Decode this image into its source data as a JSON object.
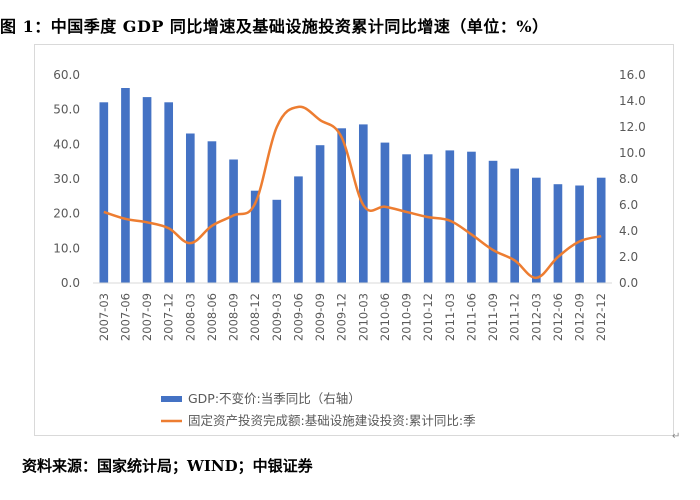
{
  "figure_title": "图 1：中国季度 GDP 同比增速及基础设施投资累计同比增速（单位：%）",
  "source_note": "资料来源：国家统计局；WIND；中银证券",
  "chart_data": {
    "type": "bar+line",
    "categories": [
      "2007-03",
      "2007-06",
      "2007-09",
      "2007-12",
      "2008-03",
      "2008-06",
      "2008-09",
      "2008-12",
      "2009-03",
      "2009-06",
      "2009-09",
      "2009-12",
      "2010-03",
      "2010-06",
      "2010-09",
      "2010-12",
      "2011-03",
      "2011-06",
      "2011-09",
      "2011-12",
      "2012-03",
      "2012-06",
      "2012-09",
      "2012-12"
    ],
    "series": [
      {
        "name": "GDP:不变价:当季同比（右轴）",
        "type": "bar",
        "axis": "right",
        "color": "#4472c4",
        "values": [
          13.9,
          15.0,
          14.3,
          13.9,
          11.5,
          10.9,
          9.5,
          7.1,
          6.4,
          8.2,
          10.6,
          11.9,
          12.2,
          10.8,
          9.9,
          9.9,
          10.2,
          10.1,
          9.4,
          8.8,
          8.1,
          7.6,
          7.5,
          8.1
        ]
      },
      {
        "name": "固定资产投资完成额:基础设施建设投资:累计同比:季",
        "type": "line",
        "axis": "left",
        "color": "#ed7d31",
        "values": [
          20.5,
          18.5,
          17.5,
          15.8,
          11.5,
          16.5,
          19.5,
          23.0,
          45.0,
          50.8,
          47.0,
          42.0,
          22.5,
          22.0,
          20.5,
          19.0,
          18.0,
          14.0,
          9.5,
          6.5,
          1.5,
          7.5,
          12.0,
          13.5
        ]
      }
    ],
    "left_axis": {
      "min": 0,
      "max": 60,
      "step": 10,
      "tick_labels": [
        "0.0",
        "10.0",
        "20.0",
        "30.0",
        "40.0",
        "50.0",
        "60.0"
      ]
    },
    "right_axis": {
      "min": 0,
      "max": 16,
      "step": 2,
      "tick_labels": [
        "0.0",
        "2.0",
        "4.0",
        "6.0",
        "8.0",
        "10.0",
        "12.0",
        "14.0",
        "16.0"
      ]
    },
    "grid": false,
    "legend_position": "bottom"
  }
}
